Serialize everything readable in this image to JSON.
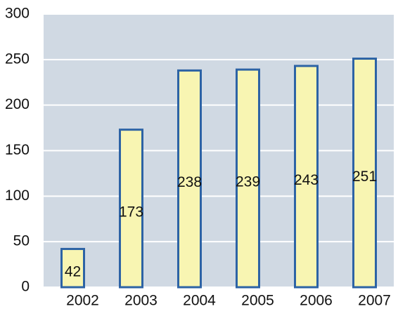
{
  "chart_data": {
    "type": "bar",
    "categories": [
      "2002",
      "2003",
      "2004",
      "2005",
      "2006",
      "2007"
    ],
    "values": [
      42,
      173,
      238,
      239,
      243,
      251
    ],
    "color": "#f8f5b2",
    "edge_color": "#2d63a5",
    "background": "#d0d9e3",
    "ylim": [
      0,
      300
    ],
    "yticks": [
      0,
      50,
      100,
      150,
      200,
      250,
      300
    ],
    "grid": true
  }
}
